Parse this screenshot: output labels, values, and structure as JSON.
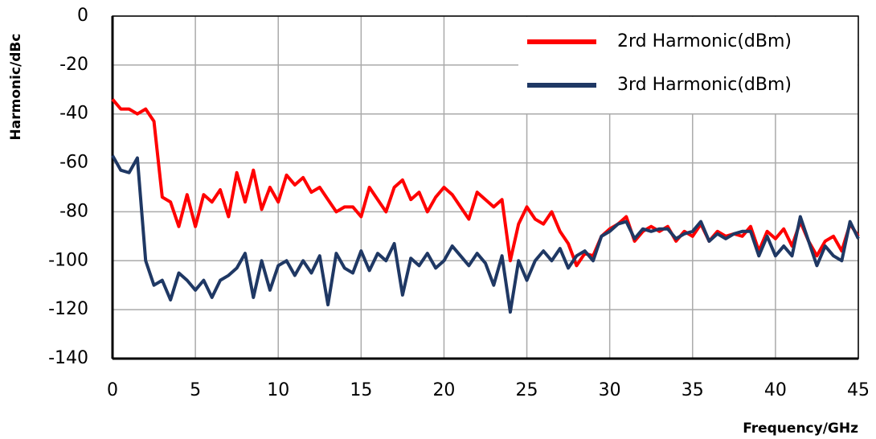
{
  "chart_data": {
    "type": "line",
    "xlabel": "Frequency/GHz",
    "ylabel": "Harmonic/dBc",
    "x": [
      0,
      0.5,
      1,
      1.5,
      2,
      2.5,
      3,
      3.5,
      4,
      4.5,
      5,
      5.5,
      6,
      6.5,
      7,
      7.5,
      8,
      8.5,
      9,
      9.5,
      10,
      10.5,
      11,
      11.5,
      12,
      12.5,
      13,
      13.5,
      14,
      14.5,
      15,
      15.5,
      16,
      16.5,
      17,
      17.5,
      18,
      18.5,
      19,
      19.5,
      20,
      20.5,
      21,
      21.5,
      22,
      22.5,
      23,
      23.5,
      24,
      24.5,
      25,
      25.5,
      26,
      26.5,
      27,
      27.5,
      28,
      28.5,
      29,
      29.5,
      30,
      30.5,
      31,
      31.5,
      32,
      32.5,
      33,
      33.5,
      34,
      34.5,
      35,
      35.5,
      36,
      36.5,
      37,
      37.5,
      38,
      38.5,
      39,
      39.5,
      40,
      40.5,
      41,
      41.5,
      42,
      42.5,
      43,
      43.5,
      44,
      44.5,
      45
    ],
    "series": [
      {
        "name": "2rd Harmonic(dBm)",
        "color": "#ff0000",
        "values": [
          -34,
          -38,
          -38,
          -40,
          -38,
          -43,
          -74,
          -76,
          -86,
          -73,
          -86,
          -73,
          -76,
          -71,
          -82,
          -64,
          -76,
          -63,
          -79,
          -70,
          -76,
          -65,
          -69,
          -66,
          -72,
          -70,
          -75,
          -80,
          -78,
          -78,
          -82,
          -70,
          -75,
          -80,
          -70,
          -67,
          -75,
          -72,
          -80,
          -74,
          -70,
          -73,
          -78,
          -83,
          -72,
          -75,
          -78,
          -75,
          -100,
          -85,
          -78,
          -83,
          -85,
          -80,
          -88,
          -93,
          -102,
          -97,
          -98,
          -90,
          -87,
          -85,
          -82,
          -92,
          -88,
          -86,
          -88,
          -86,
          -92,
          -88,
          -90,
          -85,
          -92,
          -88,
          -90,
          -89,
          -90,
          -86,
          -96,
          -88,
          -91,
          -87,
          -94,
          -84,
          -92,
          -98,
          -92,
          -90,
          -96,
          -85,
          -90
        ]
      },
      {
        "name": "3rd Harmonic(dBm)",
        "color": "#1f3864",
        "values": [
          -57,
          -63,
          -64,
          -58,
          -100,
          -110,
          -108,
          -116,
          -105,
          -108,
          -112,
          -108,
          -115,
          -108,
          -106,
          -103,
          -97,
          -115,
          -100,
          -112,
          -102,
          -100,
          -106,
          -100,
          -105,
          -98,
          -118,
          -97,
          -103,
          -105,
          -96,
          -104,
          -97,
          -100,
          -93,
          -114,
          -99,
          -102,
          -97,
          -103,
          -100,
          -94,
          -98,
          -102,
          -97,
          -101,
          -110,
          -98,
          -121,
          -100,
          -108,
          -100,
          -96,
          -100,
          -95,
          -103,
          -98,
          -96,
          -100,
          -90,
          -88,
          -85,
          -84,
          -91,
          -87,
          -88,
          -87,
          -87,
          -91,
          -89,
          -88,
          -84,
          -92,
          -89,
          -91,
          -89,
          -88,
          -88,
          -98,
          -90,
          -98,
          -94,
          -98,
          -82,
          -92,
          -102,
          -94,
          -98,
          -100,
          -84,
          -91
        ]
      }
    ],
    "xlim": [
      0,
      45
    ],
    "xticks": [
      0,
      5,
      10,
      15,
      20,
      25,
      30,
      35,
      40,
      45
    ],
    "ylim": [
      -140,
      0
    ],
    "yticks": [
      -140,
      -120,
      -100,
      -80,
      -60,
      -40,
      -20,
      0
    ],
    "grid": true,
    "legend": "upper-right"
  }
}
